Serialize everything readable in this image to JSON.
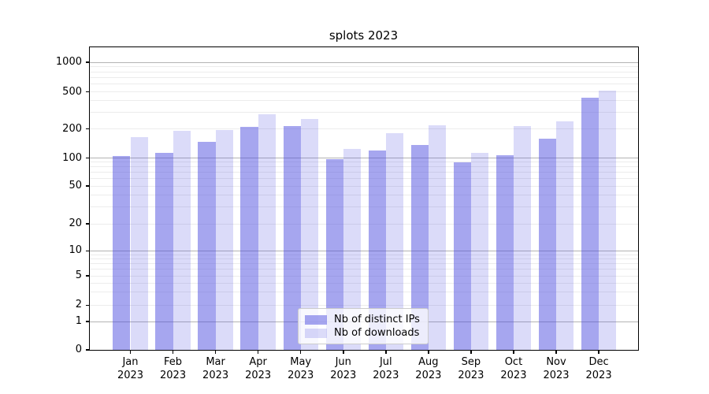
{
  "figure": {
    "title": "splots 2023"
  },
  "legend": {
    "items": [
      {
        "label": "Nb of distinct IPs",
        "series_key": "ips"
      },
      {
        "label": "Nb of downloads",
        "series_key": "downloads"
      }
    ]
  },
  "y_axis": {
    "tick_values": [
      1000,
      500,
      200,
      100,
      50,
      20,
      10,
      5,
      2,
      1,
      0
    ]
  },
  "x_axis": {
    "months": [
      "Jan",
      "Feb",
      "Mar",
      "Apr",
      "May",
      "Jun",
      "Jul",
      "Aug",
      "Sep",
      "Oct",
      "Nov",
      "Dec"
    ],
    "year": "2023"
  },
  "colors": {
    "ips_fill": "rgba(77,77,223,0.5)",
    "downloads_fill": "rgba(77,77,223,0.2)",
    "grid_major": "#b3b3b3",
    "grid_minor": "#ececec",
    "axis": "#000000",
    "legend_border": "#cccccc"
  },
  "chart_data": {
    "type": "bar",
    "title": "splots 2023",
    "categories": [
      "Jan 2023",
      "Feb 2023",
      "Mar 2023",
      "Apr 2023",
      "May 2023",
      "Jun 2023",
      "Jul 2023",
      "Aug 2023",
      "Sep 2023",
      "Oct 2023",
      "Nov 2023",
      "Dec 2023"
    ],
    "series": [
      {
        "name": "Nb of distinct IPs",
        "values": [
          105,
          114,
          148,
          212,
          213,
          97,
          120,
          137,
          89,
          107,
          159,
          430
        ]
      },
      {
        "name": "Nb of downloads",
        "values": [
          164,
          190,
          193,
          287,
          257,
          124,
          181,
          220,
          113,
          216,
          239,
          512
        ]
      }
    ],
    "xlabel": "",
    "ylabel": "",
    "yscale": "symlog",
    "y_ticks": [
      0,
      1,
      2,
      5,
      10,
      20,
      50,
      100,
      200,
      500,
      1000
    ],
    "ylim": [
      0,
      1500
    ],
    "grid": true,
    "legend_position": "lower center"
  }
}
